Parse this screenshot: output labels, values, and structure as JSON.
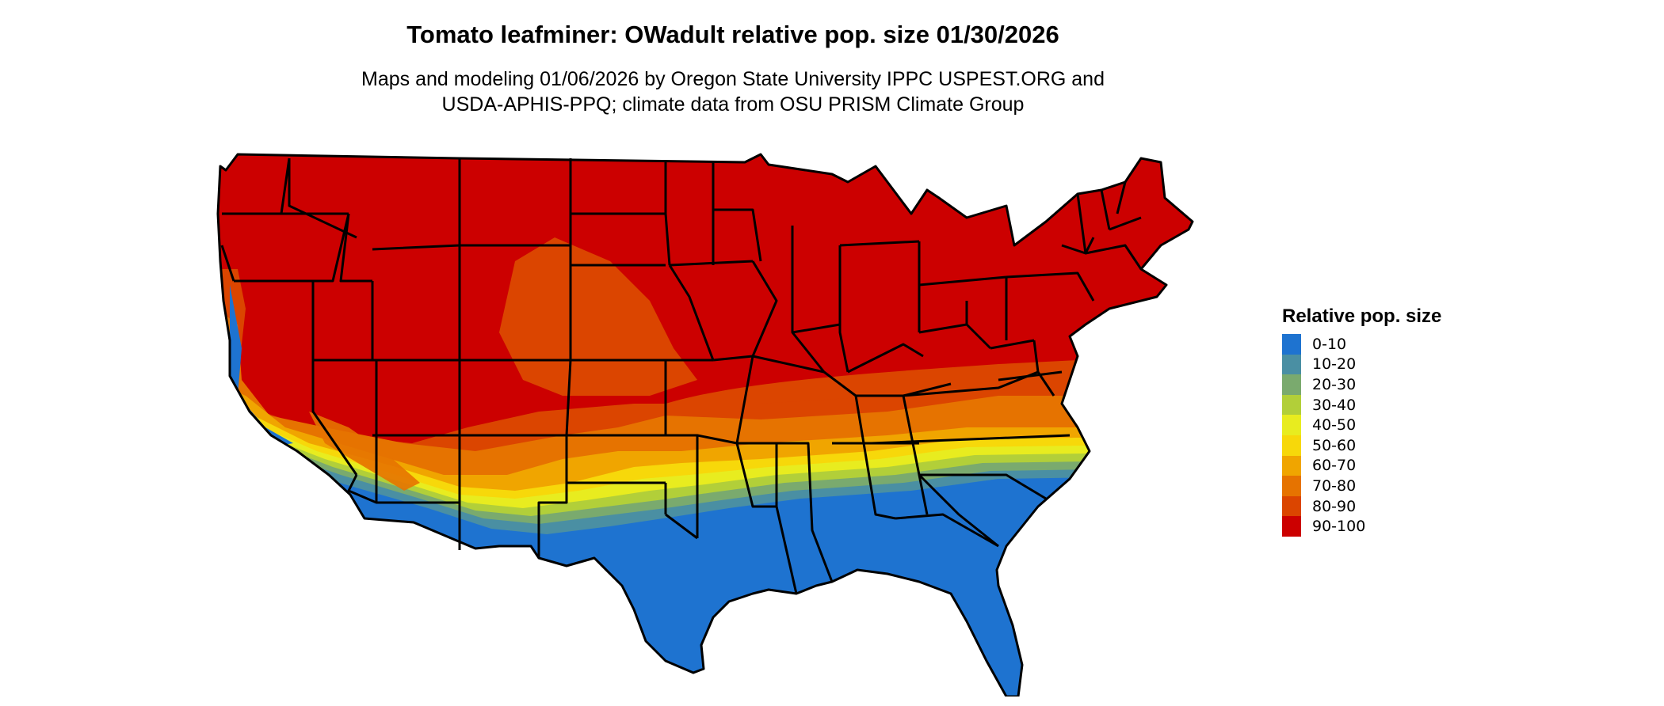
{
  "title": "Tomato leafminer: OWadult relative pop. size 01/30/2026",
  "subtitle": {
    "line1": "Maps and modeling 01/06/2026 by Oregon State University IPPC USPEST.ORG and",
    "line2": "USDA-APHIS-PPQ; climate data from OSU PRISM Climate Group"
  },
  "map": {
    "region": "Contiguous United States",
    "colors": {
      "outline": "#000000",
      "background": "#ffffff"
    }
  },
  "legend": {
    "title": "Relative pop. size",
    "items": [
      {
        "label": "0-10",
        "color": "#1e73d0"
      },
      {
        "label": "10-20",
        "color": "#4a8fa3"
      },
      {
        "label": "20-30",
        "color": "#7aaa6e"
      },
      {
        "label": "30-40",
        "color": "#b2cf39"
      },
      {
        "label": "40-50",
        "color": "#e8ec1f"
      },
      {
        "label": "50-60",
        "color": "#f7d80a"
      },
      {
        "label": "60-70",
        "color": "#f0a500"
      },
      {
        "label": "70-80",
        "color": "#e67300"
      },
      {
        "label": "80-90",
        "color": "#db4500"
      },
      {
        "label": "90-100",
        "color": "#cc0000"
      }
    ]
  }
}
